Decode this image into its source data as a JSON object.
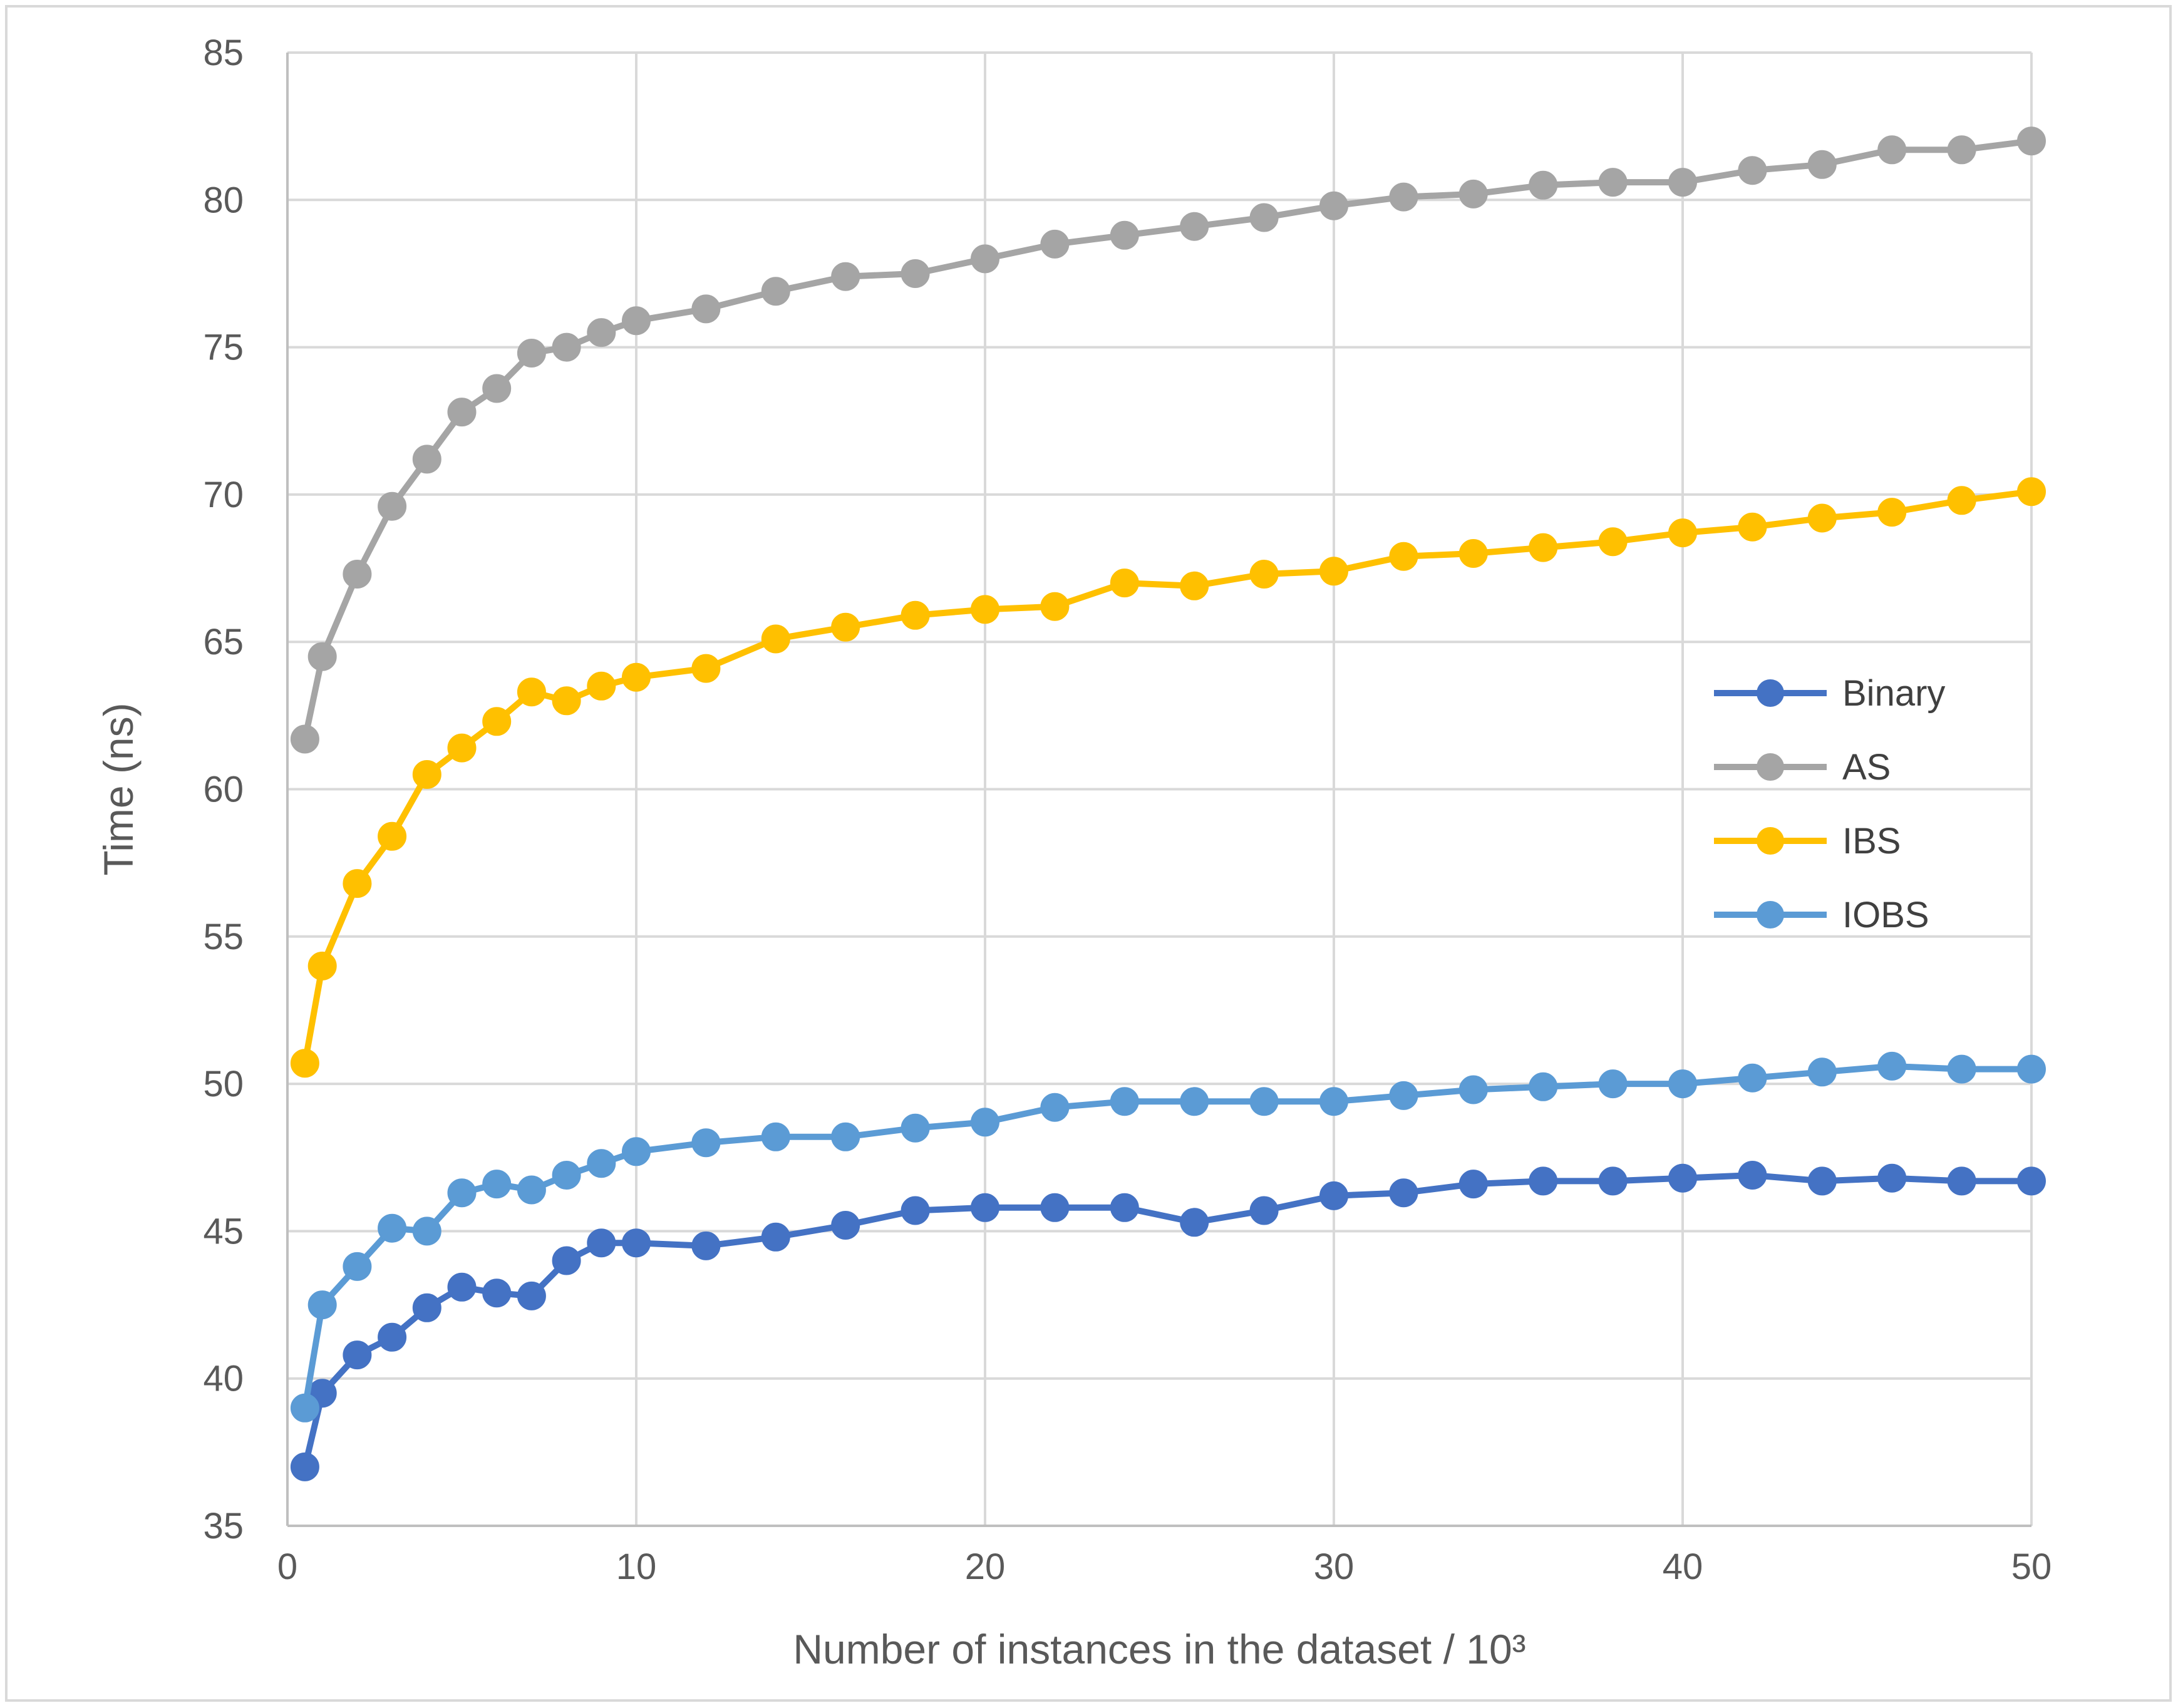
{
  "chart_data": {
    "type": "line",
    "title": "",
    "xlabel": "Number of instances in the dataset / 10³",
    "ylabel": "Time (ns)",
    "xlim": [
      0,
      50
    ],
    "ylim": [
      35,
      85
    ],
    "xticks": [
      0,
      10,
      20,
      30,
      40,
      50
    ],
    "yticks": [
      35,
      40,
      45,
      50,
      55,
      60,
      65,
      70,
      75,
      80,
      85
    ],
    "grid": true,
    "legend_position": "right",
    "series": [
      {
        "name": "Binary",
        "color": "#4472C4",
        "x": [
          0.5,
          1,
          2,
          3,
          4,
          5,
          6,
          7,
          8,
          9,
          10,
          12,
          14,
          16,
          18,
          20,
          22,
          24,
          26,
          28,
          30,
          32,
          34,
          36,
          38,
          40,
          42,
          44,
          46,
          48,
          50
        ],
        "y": [
          37.0,
          39.5,
          40.8,
          41.4,
          42.4,
          43.1,
          42.9,
          42.8,
          44.0,
          44.6,
          44.6,
          44.5,
          44.8,
          45.2,
          45.7,
          45.8,
          45.8,
          45.8,
          45.3,
          45.7,
          46.2,
          46.3,
          46.6,
          46.7,
          46.7,
          46.8,
          46.9,
          46.7,
          46.8,
          46.7,
          46.7
        ]
      },
      {
        "name": "AS",
        "color": "#A5A5A5",
        "x": [
          0.5,
          1,
          2,
          3,
          4,
          5,
          6,
          7,
          8,
          9,
          10,
          12,
          14,
          16,
          18,
          20,
          22,
          24,
          26,
          28,
          30,
          32,
          34,
          36,
          38,
          40,
          42,
          44,
          46,
          48,
          50
        ],
        "y": [
          61.7,
          64.5,
          67.3,
          69.6,
          71.2,
          72.8,
          73.6,
          74.8,
          75.0,
          75.5,
          75.9,
          76.3,
          76.9,
          77.4,
          77.5,
          78.0,
          78.5,
          78.8,
          79.1,
          79.4,
          79.8,
          80.1,
          80.2,
          80.5,
          80.6,
          80.6,
          81.0,
          81.2,
          81.7,
          81.7,
          82.0
        ]
      },
      {
        "name": "IBS",
        "color": "#FFC000",
        "x": [
          0.5,
          1,
          2,
          3,
          4,
          5,
          6,
          7,
          8,
          9,
          10,
          12,
          14,
          16,
          18,
          20,
          22,
          24,
          26,
          28,
          30,
          32,
          34,
          36,
          38,
          40,
          42,
          44,
          46,
          48,
          50
        ],
        "y": [
          50.7,
          54.0,
          56.8,
          58.4,
          60.5,
          61.4,
          62.3,
          63.3,
          63.0,
          63.5,
          63.8,
          64.1,
          65.1,
          65.5,
          65.9,
          66.1,
          66.2,
          67.0,
          66.9,
          67.3,
          67.4,
          67.9,
          68.0,
          68.2,
          68.4,
          68.7,
          68.9,
          69.2,
          69.4,
          69.8,
          70.1
        ]
      },
      {
        "name": "IOBS",
        "color": "#5B9BD5",
        "x": [
          0.5,
          1,
          2,
          3,
          4,
          5,
          6,
          7,
          8,
          9,
          10,
          12,
          14,
          16,
          18,
          20,
          22,
          24,
          26,
          28,
          30,
          32,
          34,
          36,
          38,
          40,
          42,
          44,
          46,
          48,
          50
        ],
        "y": [
          39.0,
          42.5,
          43.8,
          45.1,
          45.0,
          46.3,
          46.6,
          46.4,
          46.9,
          47.3,
          47.7,
          48.0,
          48.2,
          48.2,
          48.5,
          48.7,
          49.2,
          49.4,
          49.4,
          49.4,
          49.4,
          49.6,
          49.8,
          49.9,
          50.0,
          50.0,
          50.2,
          50.4,
          50.6,
          50.5,
          50.5
        ]
      }
    ]
  }
}
